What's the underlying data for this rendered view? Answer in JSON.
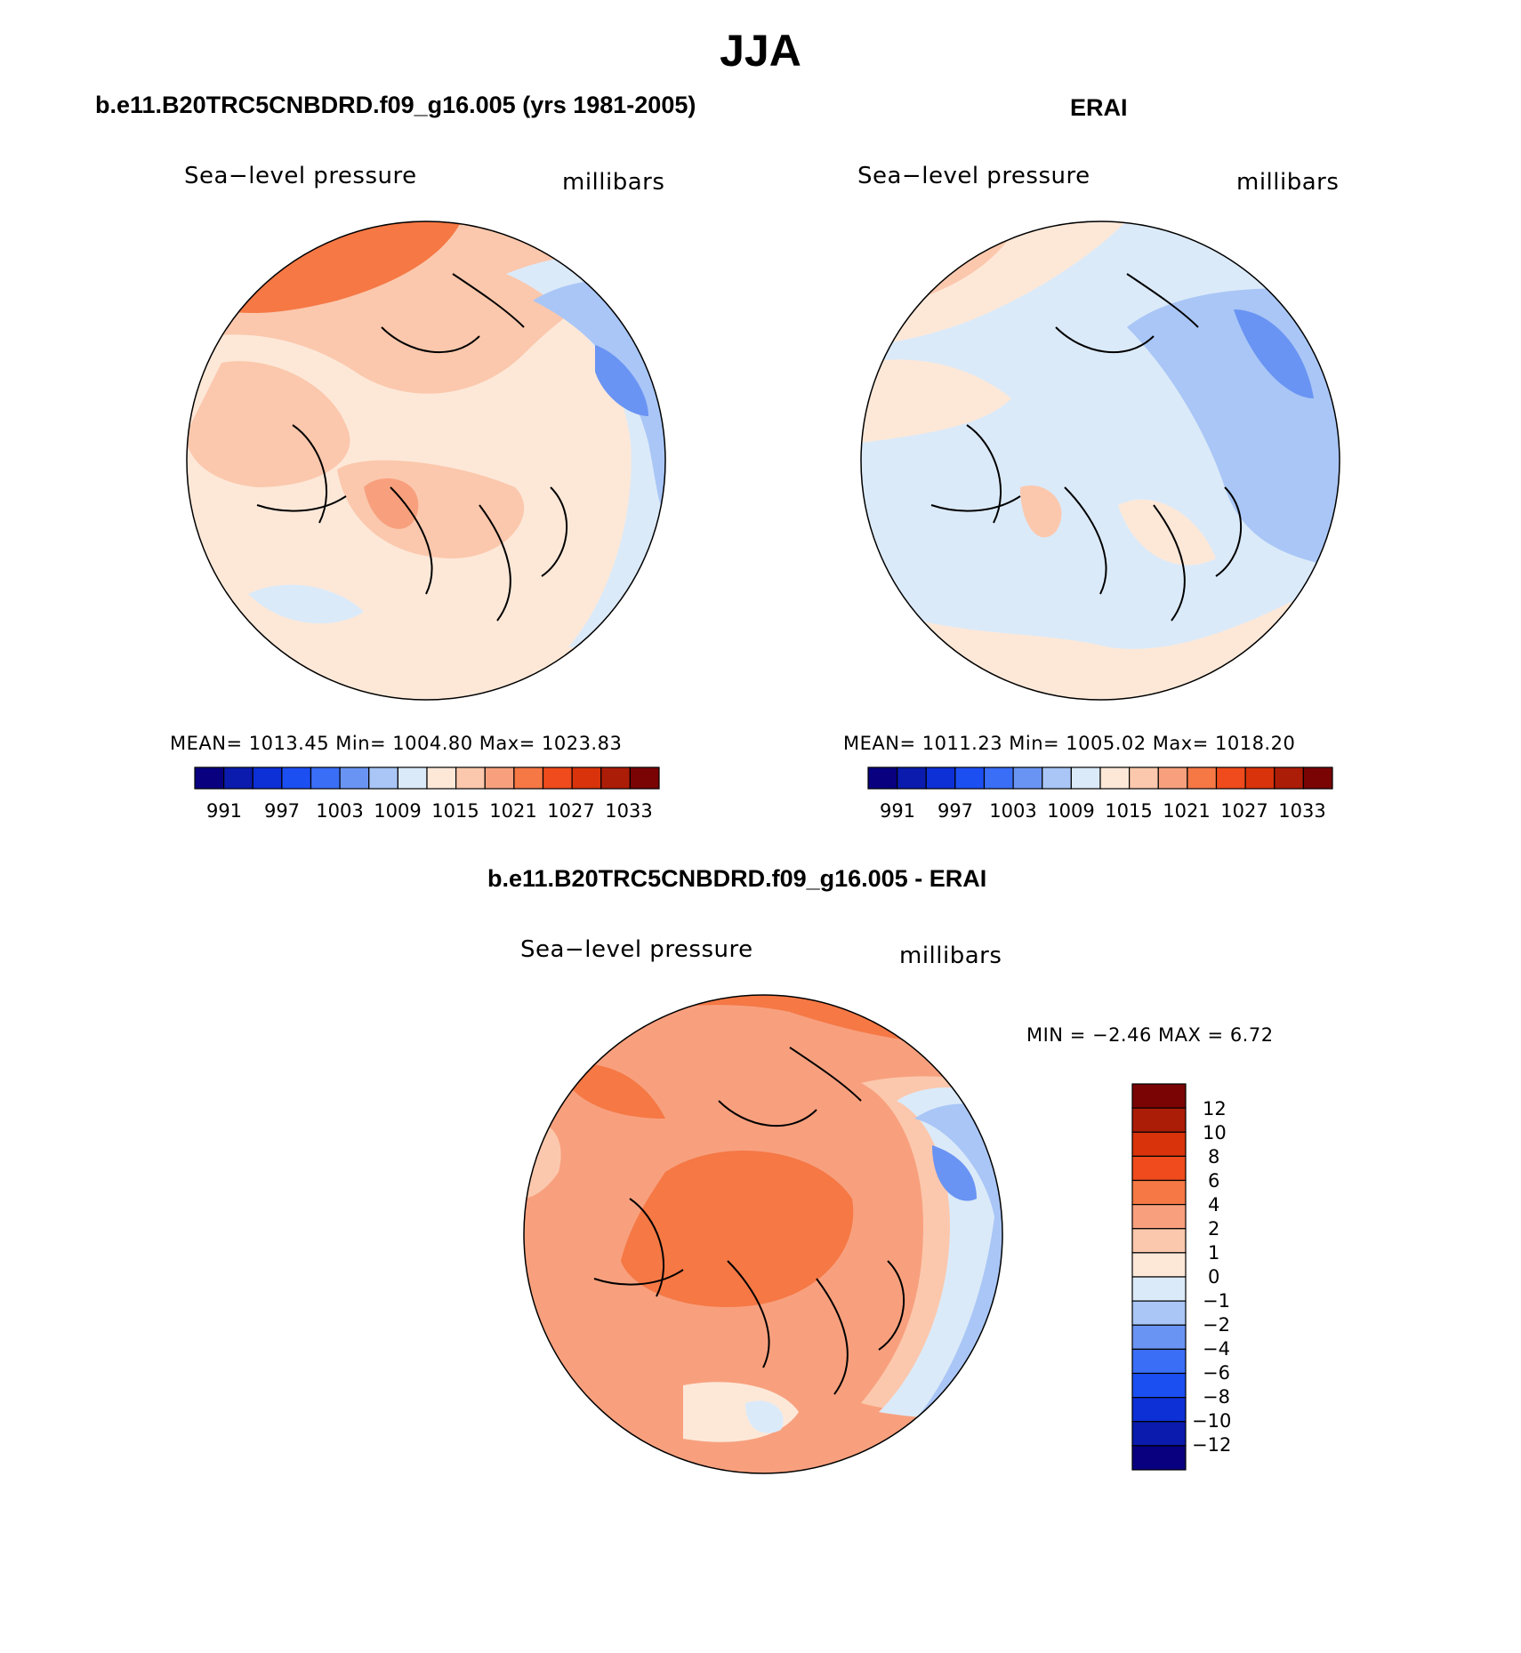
{
  "figure_title": "JJA",
  "panels": [
    {
      "title": "b.e11.B20TRC5CNBDRD.f09_g16.005 (yrs 1981-2005)",
      "variable": "Sea−level pressure",
      "units": "millibars",
      "stats": "MEAN=  1013.45    Min=  1004.80    Max=  1023.83"
    },
    {
      "title": "ERAI",
      "variable": "Sea−level pressure",
      "units": "millibars",
      "stats": "MEAN=  1011.23    Min=  1005.02    Max=  1018.20"
    },
    {
      "title": "b.e11.B20TRC5CNBDRD.f09_g16.005 - ERAI",
      "variable": "Sea−level pressure",
      "units": "millibars",
      "stats": "MIN =    −2.46  MAX =      6.72"
    }
  ],
  "abs_colorbar": {
    "labels": [
      "991",
      "997",
      "1003",
      "1009",
      "1015",
      "1021",
      "1027",
      "1033"
    ],
    "colors": [
      "#08007f",
      "#0a1bad",
      "#0c2fd6",
      "#1c4ff2",
      "#3a6ef7",
      "#6a94f3",
      "#a9c6f6",
      "#dbeaf9",
      "#fde8d8",
      "#fbc8ad",
      "#f8a07e",
      "#f57845",
      "#ef4b1c",
      "#d8330b",
      "#ac1d08",
      "#7a0404"
    ]
  },
  "diff_colorbar": {
    "labels": [
      "12",
      "10",
      "8",
      "6",
      "4",
      "2",
      "1",
      "0",
      "−1",
      "−2",
      "−4",
      "−6",
      "−8",
      "−10",
      "−12"
    ],
    "colors": [
      "#7a0404",
      "#ac1d08",
      "#d8330b",
      "#ef4b1c",
      "#f57845",
      "#f8a07e",
      "#fbc8ad",
      "#fde8d8",
      "#dbeaf9",
      "#a9c6f6",
      "#6a94f3",
      "#3a6ef7",
      "#1c4ff2",
      "#0c2fd6",
      "#0a1bad",
      "#08007f"
    ]
  }
}
